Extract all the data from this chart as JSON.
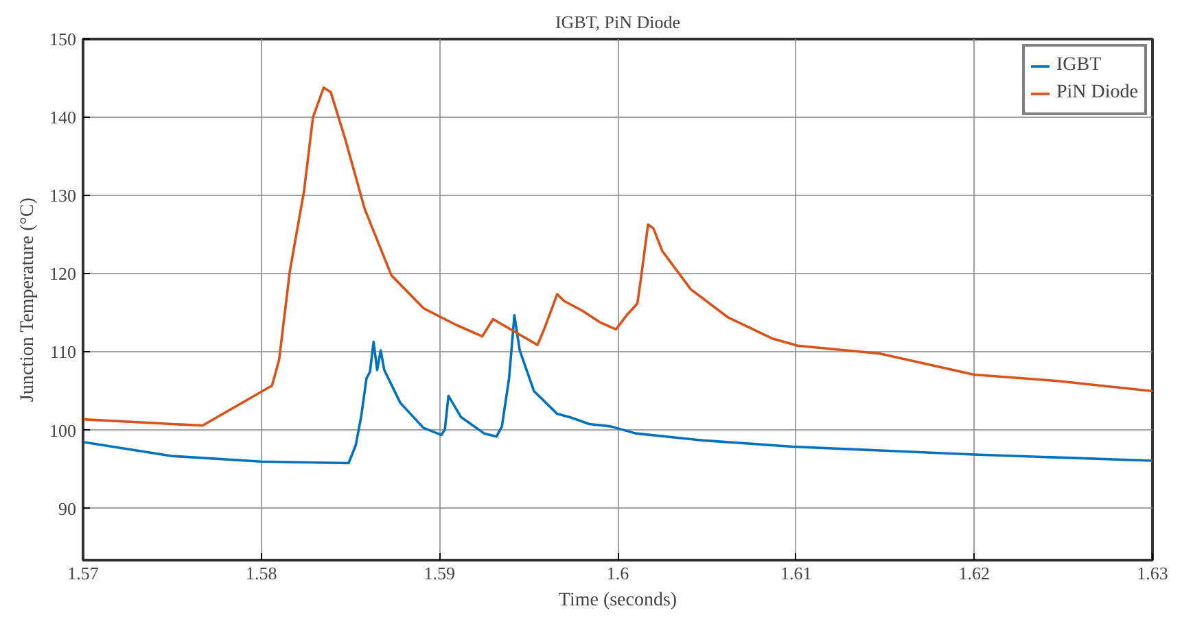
{
  "chart_data": {
    "type": "line",
    "title": "IGBT, PiN Diode",
    "xlabel": "Time (seconds)",
    "ylabel": "Junction Temperature (°C)",
    "xlim": [
      1.57,
      1.63
    ],
    "xticks": [
      1.57,
      1.58,
      1.59,
      1.6,
      1.61,
      1.62,
      1.63
    ],
    "ylim": [
      83.4,
      150
    ],
    "yticks": [
      90,
      100,
      110,
      120,
      130,
      140,
      150
    ],
    "grid": true,
    "legend": "top right",
    "line_style": "solid",
    "marker": "none",
    "series": [
      {
        "name": "IGBT",
        "color": "#0072bd",
        "x": [
          1.57,
          1.575,
          1.58,
          1.5849,
          1.5853,
          1.5856,
          1.5859,
          1.5861,
          1.5863,
          1.5865,
          1.5867,
          1.5869,
          1.5878,
          1.5891,
          1.5901,
          1.5903,
          1.5905,
          1.5912,
          1.5925,
          1.5932,
          1.5935,
          1.5939,
          1.5942,
          1.5945,
          1.5953,
          1.5966,
          1.5974,
          1.5984,
          1.5996,
          1.601,
          1.6048,
          1.6098,
          1.62,
          1.63
        ],
        "values": [
          98.5,
          96.7,
          96.0,
          95.8,
          98.1,
          101.7,
          106.6,
          107.5,
          111.3,
          107.7,
          110.2,
          107.7,
          103.5,
          100.3,
          99.4,
          100.1,
          104.4,
          101.7,
          99.6,
          99.2,
          100.5,
          106.6,
          114.7,
          110.2,
          105.0,
          102.1,
          101.6,
          100.8,
          100.5,
          99.6,
          98.7,
          97.9,
          96.9,
          96.1
        ]
      },
      {
        "name": "PiN Diode",
        "color": "#d95319",
        "x": [
          1.57,
          1.5767,
          1.5806,
          1.581,
          1.5816,
          1.5824,
          1.5829,
          1.5835,
          1.5839,
          1.5847,
          1.5858,
          1.5873,
          1.5891,
          1.5909,
          1.5924,
          1.593,
          1.5955,
          1.5959,
          1.5966,
          1.597,
          1.598,
          1.599,
          1.5999,
          1.6005,
          1.6011,
          1.6013,
          1.6017,
          1.602,
          1.6025,
          1.6041,
          1.6062,
          1.6087,
          1.6101,
          1.6147,
          1.62,
          1.6247,
          1.63
        ],
        "values": [
          101.4,
          100.6,
          105.7,
          109.0,
          120.3,
          130.6,
          140.0,
          143.8,
          143.2,
          137.3,
          128.3,
          119.8,
          115.6,
          113.5,
          112.0,
          114.2,
          110.9,
          113.1,
          117.4,
          116.5,
          115.3,
          113.8,
          112.9,
          114.7,
          116.2,
          119.4,
          126.3,
          125.8,
          122.9,
          118.0,
          114.4,
          111.7,
          110.8,
          109.8,
          107.1,
          106.3,
          105.0
        ]
      }
    ]
  }
}
